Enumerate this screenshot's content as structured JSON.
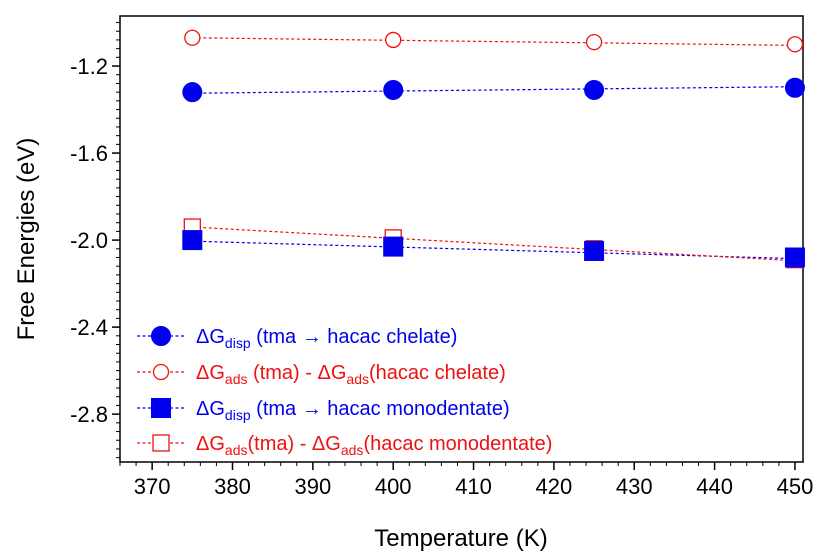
{
  "chart_data": {
    "type": "scatter",
    "title": "",
    "xlabel": "Temperature (K)",
    "ylabel": "Free Energies (eV)",
    "xlim": [
      366,
      451
    ],
    "ylim": [
      -3.02,
      -0.97
    ],
    "x_ticks": [
      370,
      380,
      390,
      400,
      410,
      420,
      430,
      440,
      450
    ],
    "x_tick_labels": [
      "370",
      "380",
      "390",
      "400",
      "410",
      "420",
      "430",
      "440",
      "450"
    ],
    "y_ticks": [
      -1.2,
      -1.6,
      -2.0,
      -2.4,
      -2.8
    ],
    "y_tick_labels": [
      "-1.2",
      "-1.6",
      "-2.0",
      "-2.4",
      "-2.8"
    ],
    "grid": false,
    "legend_position": "bottom-left",
    "series": [
      {
        "name": "ΔGdisp (tma → hacac chelate)",
        "legend_parts": [
          {
            "t": "ΔG"
          },
          {
            "t": "disp",
            "sub": true
          },
          {
            "t": " (tma → hacac chelate)"
          }
        ],
        "color": "#0000ee",
        "marker": "circle-filled",
        "x": [
          375,
          400,
          425,
          450
        ],
        "y": [
          -1.32,
          -1.31,
          -1.31,
          -1.3
        ],
        "fit": [
          [
            375,
            -1.325
          ],
          [
            450,
            -1.295
          ]
        ]
      },
      {
        "name": "ΔGads (tma) - ΔGads(hacac chelate)",
        "legend_parts": [
          {
            "t": "ΔG"
          },
          {
            "t": "ads",
            "sub": true
          },
          {
            "t": " (tma) - ΔG"
          },
          {
            "t": "ads",
            "sub": true
          },
          {
            "t": "(hacac chelate)"
          }
        ],
        "color": "#ee1111",
        "marker": "circle-open",
        "x": [
          375,
          400,
          425,
          450
        ],
        "y": [
          -1.07,
          -1.08,
          -1.09,
          -1.1
        ],
        "fit": [
          [
            375,
            -1.07
          ],
          [
            450,
            -1.105
          ]
        ]
      },
      {
        "name": "ΔGdisp (tma → hacac monodentate)",
        "legend_parts": [
          {
            "t": "ΔG"
          },
          {
            "t": "disp",
            "sub": true
          },
          {
            "t": " (tma → hacac monodentate)"
          }
        ],
        "color": "#0000ee",
        "marker": "square-filled",
        "x": [
          375,
          400,
          425,
          450
        ],
        "y": [
          -2.0,
          -2.03,
          -2.05,
          -2.08
        ],
        "fit": [
          [
            375,
            -2.005
          ],
          [
            450,
            -2.085
          ]
        ]
      },
      {
        "name": "ΔGads(tma) - ΔGads(hacac monodentate)",
        "legend_parts": [
          {
            "t": "ΔG"
          },
          {
            "t": "ads",
            "sub": true
          },
          {
            "t": "(tma) - ΔG"
          },
          {
            "t": "ads",
            "sub": true
          },
          {
            "t": "(hacac monodentate)"
          }
        ],
        "color": "#ee1111",
        "marker": "square-open",
        "x": [
          375,
          400,
          425,
          450
        ],
        "y": [
          -1.94,
          -1.99,
          -2.04,
          -2.09
        ],
        "fit": [
          [
            375,
            -1.94
          ],
          [
            450,
            -2.095
          ]
        ]
      }
    ]
  }
}
